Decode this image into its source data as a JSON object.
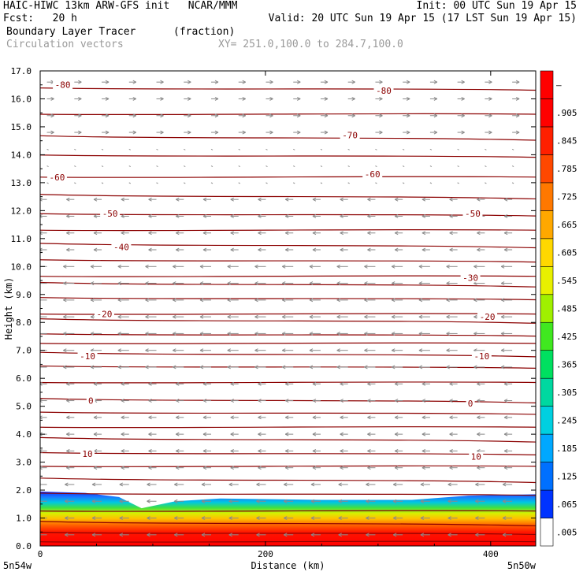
{
  "header": {
    "line1_left": "HAIC-HIWC 13km ARW-GFS init   NCAR/MMM",
    "line1_right": "Init: 00 UTC Sun 19 Apr 15",
    "line2_left": "Fcst:   20 h",
    "line2_right": "Valid: 20 UTC Sun 19 Apr 15 (17 LST Sun 19 Apr 15)",
    "field_name": "Boundary Layer Tracer",
    "field_units": "(fraction)",
    "vector_label": "Circulation vectors",
    "xsec_coords": "XY= 251.0,100.0 to 284.7,100.0"
  },
  "chart_data": {
    "type": "heatmap",
    "ylabel": "Height (km)",
    "xlabel": "Distance (km)",
    "xlim": [
      0,
      440
    ],
    "ylim": [
      0.0,
      17.0
    ],
    "y_ticks": [
      "0.0",
      "1.0",
      "2.0",
      "3.0",
      "4.0",
      "5.0",
      "6.0",
      "7.0",
      "8.0",
      "9.0",
      "10.0",
      "11.0",
      "12.0",
      "13.0",
      "14.0",
      "15.0",
      "16.0",
      "17.0"
    ],
    "x_ticks": [
      "0",
      "200",
      "400"
    ],
    "x_end_labels": {
      "left": "5n54w",
      "right": "5n50w"
    },
    "colorbar_labels": [
      ".005",
      ".065",
      ".125",
      ".185",
      ".245",
      ".305",
      ".365",
      ".425",
      ".485",
      ".545",
      ".605",
      ".665",
      ".725",
      ".785",
      ".845",
      ".905",
      "–"
    ],
    "colorbar_colors": [
      "#ffffff",
      "#0033ff",
      "#0070ff",
      "#00a8ff",
      "#00d0e0",
      "#00d8a0",
      "#00e060",
      "#40e820",
      "#a0f000",
      "#e8f000",
      "#ffd800",
      "#ffa800",
      "#ff7800",
      "#ff4800",
      "#ff2000",
      "#ff0000",
      "#ff0000"
    ],
    "contour_color": "#8b0000",
    "contour_labels": [
      {
        "value": "-80",
        "x": 20,
        "y": 16.5
      },
      {
        "value": "-80",
        "x": 305,
        "y": 16.3
      },
      {
        "value": "-70",
        "x": 275,
        "y": 14.7
      },
      {
        "value": "-60",
        "x": 15,
        "y": 13.2
      },
      {
        "value": "-60",
        "x": 295,
        "y": 13.3
      },
      {
        "value": "-50",
        "x": 62,
        "y": 11.9
      },
      {
        "value": "-50",
        "x": 384,
        "y": 11.9
      },
      {
        "value": "-40",
        "x": 72,
        "y": 10.7
      },
      {
        "value": "-30",
        "x": 382,
        "y": 9.6
      },
      {
        "value": "-20",
        "x": 57,
        "y": 8.3
      },
      {
        "value": "-20",
        "x": 397,
        "y": 8.2
      },
      {
        "value": "-10",
        "x": 42,
        "y": 6.8
      },
      {
        "value": "-10",
        "x": 392,
        "y": 6.8
      },
      {
        "value": "0",
        "x": 45,
        "y": 5.2
      },
      {
        "value": "0",
        "x": 382,
        "y": 5.1
      },
      {
        "value": "10",
        "x": 42,
        "y": 3.3
      },
      {
        "value": "10",
        "x": 387,
        "y": 3.2
      }
    ],
    "boundary_layer_top": [
      {
        "x": 0,
        "y": 1.95
      },
      {
        "x": 40,
        "y": 1.9
      },
      {
        "x": 70,
        "y": 1.75
      },
      {
        "x": 90,
        "y": 1.35
      },
      {
        "x": 120,
        "y": 1.6
      },
      {
        "x": 160,
        "y": 1.7
      },
      {
        "x": 250,
        "y": 1.65
      },
      {
        "x": 330,
        "y": 1.65
      },
      {
        "x": 380,
        "y": 1.8
      },
      {
        "x": 440,
        "y": 1.85
      }
    ],
    "wind_flow": "easterly aloft below 13 km, westerly above 14 km"
  }
}
